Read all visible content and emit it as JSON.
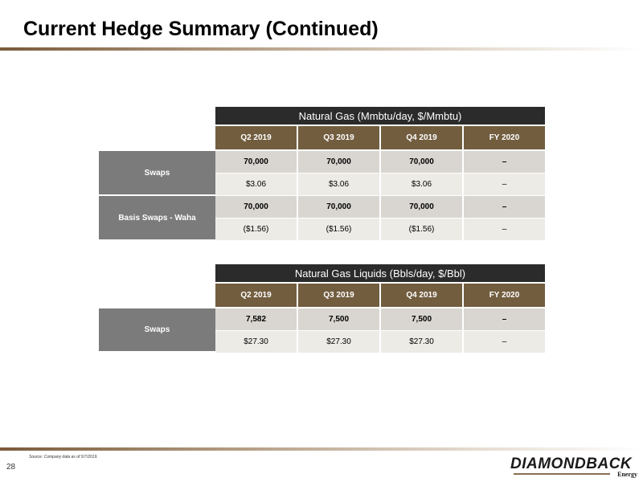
{
  "title": "Current Hedge Summary (Continued)",
  "page_number": "28",
  "source": "Source: Company data as of 5/7/2019.",
  "logo": {
    "main": "DIAMONDBACK",
    "sub": "Energy"
  },
  "colors": {
    "header_dark": "#2b2b2b",
    "quarter_header": "#725d3f",
    "row_label": "#7b7b7b",
    "volume_row": "#d9d6d1",
    "price_row": "#ecebe6",
    "accent_rule": "#7a5a3a"
  },
  "tables": [
    {
      "header": "Natural Gas (Mmbtu/day, $/Mmbtu)",
      "periods": [
        "Q2 2019",
        "Q3 2019",
        "Q4 2019",
        "FY 2020"
      ],
      "groups": [
        {
          "label": "Swaps",
          "volume": [
            "70,000",
            "70,000",
            "70,000",
            "–"
          ],
          "price": [
            "$3.06",
            "$3.06",
            "$3.06",
            "–"
          ]
        },
        {
          "label": "Basis Swaps - Waha",
          "volume": [
            "70,000",
            "70,000",
            "70,000",
            "–"
          ],
          "price": [
            "($1.56)",
            "($1.56)",
            "($1.56)",
            "–"
          ]
        }
      ]
    },
    {
      "header": "Natural Gas Liquids (Bbls/day, $/Bbl)",
      "periods": [
        "Q2 2019",
        "Q3 2019",
        "Q4 2019",
        "FY 2020"
      ],
      "groups": [
        {
          "label": "Swaps",
          "volume": [
            "7,582",
            "7,500",
            "7,500",
            "–"
          ],
          "price": [
            "$27.30",
            "$27.30",
            "$27.30",
            "–"
          ]
        }
      ]
    }
  ]
}
